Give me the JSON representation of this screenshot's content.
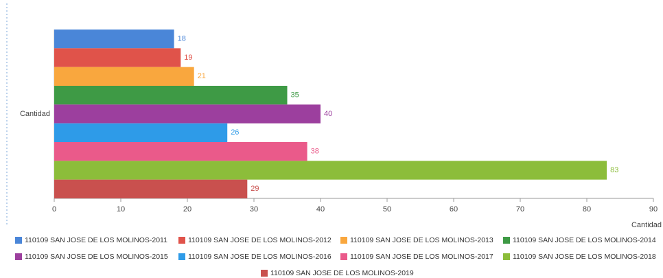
{
  "chart_data": {
    "type": "bar",
    "orientation": "horizontal",
    "categories": [
      "Cantidad"
    ],
    "x_label": "Cantidad",
    "xlim": [
      0,
      90
    ],
    "xticks": [
      0,
      10,
      20,
      30,
      40,
      50,
      60,
      70,
      80,
      90
    ],
    "series": [
      {
        "name": "110109 SAN JOSE DE LOS MOLINOS-2011",
        "color": "#4a86d8",
        "values": [
          18
        ]
      },
      {
        "name": "110109 SAN JOSE DE LOS MOLINOS-2012",
        "color": "#e0534a",
        "values": [
          19
        ]
      },
      {
        "name": "110109 SAN JOSE DE LOS MOLINOS-2013",
        "color": "#f9a73e",
        "values": [
          21
        ]
      },
      {
        "name": "110109 SAN JOSE DE LOS MOLINOS-2014",
        "color": "#3e9a45",
        "values": [
          35
        ]
      },
      {
        "name": "110109 SAN JOSE DE LOS MOLINOS-2015",
        "color": "#9c3f9e",
        "values": [
          40
        ]
      },
      {
        "name": "110109 SAN JOSE DE LOS MOLINOS-2016",
        "color": "#2e9be8",
        "values": [
          26
        ]
      },
      {
        "name": "110109 SAN JOSE DE LOS MOLINOS-2017",
        "color": "#ea5a8a",
        "values": [
          38
        ]
      },
      {
        "name": "110109 SAN JOSE DE LOS MOLINOS-2018",
        "color": "#8cbd3a",
        "values": [
          83
        ]
      },
      {
        "name": "110109 SAN JOSE DE LOS MOLINOS-2019",
        "color": "#c9504e",
        "values": [
          29
        ]
      }
    ],
    "legend": "bottom"
  }
}
